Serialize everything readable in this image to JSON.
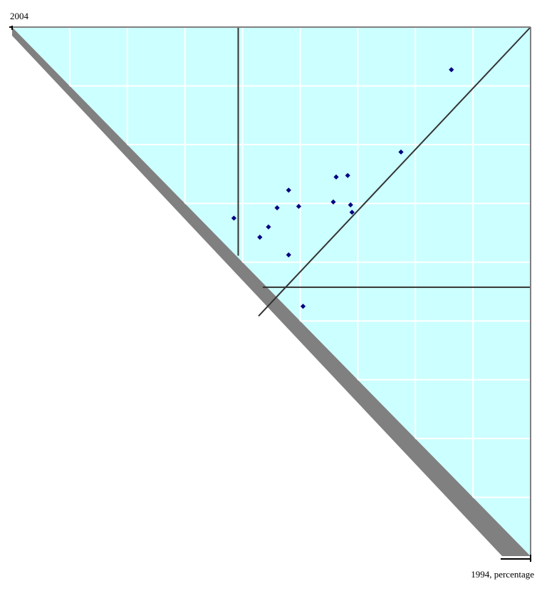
{
  "chart_data": {
    "type": "scatter",
    "title": "",
    "ylabel": "2004",
    "xlabel": "1994, percentage",
    "grid": true,
    "legend": "none",
    "xlim": [
      0,
      18
    ],
    "ylim": [
      0,
      18
    ],
    "x_gridlines": [
      2,
      4,
      6,
      8,
      10,
      12,
      14,
      16
    ],
    "y_gridlines": [
      2,
      4,
      6,
      8,
      10,
      12,
      14,
      16
    ],
    "reference_lines": {
      "vertical_x": 7.85,
      "horizontal_y": 9.15,
      "diagonal": "y = x"
    },
    "series": [
      {
        "values": [
          {
            "x": 7.7,
            "y": 11.5
          },
          {
            "x": 8.6,
            "y": 10.85
          },
          {
            "x": 8.9,
            "y": 11.2
          },
          {
            "x": 9.2,
            "y": 11.85
          },
          {
            "x": 9.6,
            "y": 12.45
          },
          {
            "x": 9.95,
            "y": 11.9
          },
          {
            "x": 11.15,
            "y": 12.05
          },
          {
            "x": 11.25,
            "y": 12.9
          },
          {
            "x": 11.65,
            "y": 12.95
          },
          {
            "x": 11.75,
            "y": 11.95
          },
          {
            "x": 11.8,
            "y": 11.7
          },
          {
            "x": 13.5,
            "y": 13.75
          },
          {
            "x": 15.25,
            "y": 16.55
          },
          {
            "x": 9.6,
            "y": 10.25
          },
          {
            "x": 10.1,
            "y": 8.5
          }
        ]
      }
    ],
    "colors": {
      "plot_background": "#ccffff",
      "gridlines": "#ffffff",
      "shadow": "#808080",
      "reference_lines": "#333333",
      "border": "#808080",
      "markers": "#000080"
    }
  }
}
